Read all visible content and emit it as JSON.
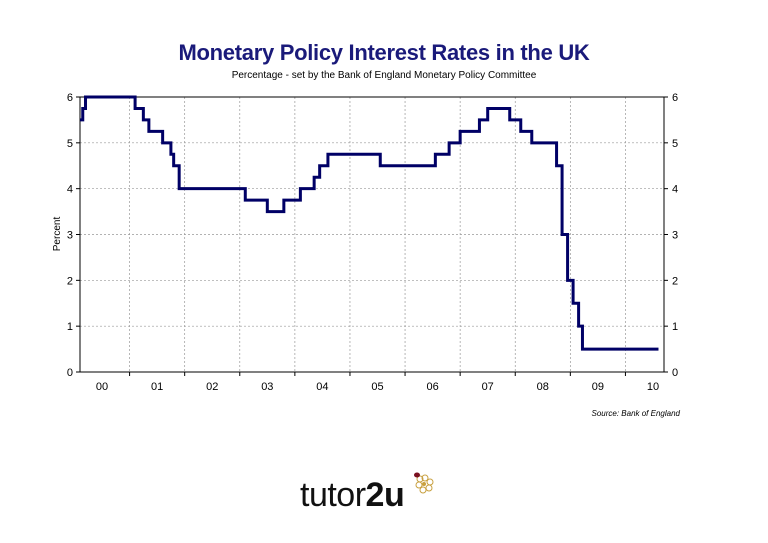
{
  "chart_data": {
    "type": "line",
    "title": "Monetary Policy Interest Rates in the UK",
    "subtitle": "Percentage - set by the Bank of England Monetary Policy Committee",
    "ylabel": "Percent",
    "ylim": [
      0,
      6
    ],
    "yticks": [
      "0",
      "1",
      "2",
      "3",
      "4",
      "5",
      "6"
    ],
    "xlim": [
      1999.6,
      2010.2
    ],
    "xticks": [
      {
        "label": "00",
        "year": 2000
      },
      {
        "label": "01",
        "year": 2001
      },
      {
        "label": "02",
        "year": 2002
      },
      {
        "label": "03",
        "year": 2003
      },
      {
        "label": "04",
        "year": 2004
      },
      {
        "label": "05",
        "year": 2005
      },
      {
        "label": "06",
        "year": 2006
      },
      {
        "label": "07",
        "year": 2007
      },
      {
        "label": "08",
        "year": 2008
      },
      {
        "label": "09",
        "year": 2009
      },
      {
        "label": "10",
        "year": 2010
      }
    ],
    "grid": true,
    "step": true,
    "color": "#000066",
    "series": [
      {
        "points": [
          [
            1999.6,
            5.5
          ],
          [
            1999.65,
            5.75
          ],
          [
            1999.7,
            6.0
          ],
          [
            2000.6,
            5.75
          ],
          [
            2000.75,
            5.5
          ],
          [
            2000.85,
            5.25
          ],
          [
            2001.1,
            5.0
          ],
          [
            2001.25,
            4.75
          ],
          [
            2001.3,
            4.5
          ],
          [
            2001.4,
            4.0
          ],
          [
            2002.6,
            3.75
          ],
          [
            2003.0,
            3.5
          ],
          [
            2003.3,
            3.75
          ],
          [
            2003.6,
            4.0
          ],
          [
            2003.85,
            4.25
          ],
          [
            2003.95,
            4.5
          ],
          [
            2004.1,
            4.75
          ],
          [
            2005.05,
            4.5
          ],
          [
            2006.05,
            4.75
          ],
          [
            2006.3,
            5.0
          ],
          [
            2006.5,
            5.25
          ],
          [
            2006.85,
            5.5
          ],
          [
            2007.0,
            5.75
          ],
          [
            2007.4,
            5.5
          ],
          [
            2007.6,
            5.25
          ],
          [
            2007.8,
            5.0
          ],
          [
            2008.25,
            4.5
          ],
          [
            2008.35,
            3.0
          ],
          [
            2008.45,
            2.0
          ],
          [
            2008.55,
            1.5
          ],
          [
            2008.65,
            1.0
          ],
          [
            2008.72,
            0.5
          ],
          [
            2010.1,
            0.5
          ]
        ]
      }
    ]
  },
  "source": "Source: Bank of England",
  "logo": {
    "text_light": "tutor",
    "text_bold": "2u"
  }
}
